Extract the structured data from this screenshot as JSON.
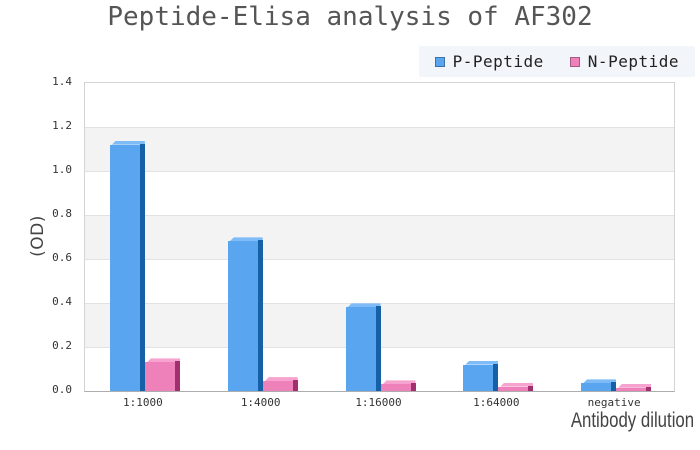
{
  "chart_data": {
    "type": "bar",
    "style": "pseudo-3d-grouped-bars",
    "title": "Peptide-Elisa analysis of AF302",
    "xlabel": "Antibody dilution",
    "ylabel": "(OD)",
    "categories": [
      "1:1000",
      "1:4000",
      "1:16000",
      "1:64000",
      "negative"
    ],
    "series": [
      {
        "name": "P-Peptide",
        "values": [
          1.12,
          0.68,
          0.38,
          0.12,
          0.035
        ],
        "color": "#5aa5f0",
        "color_top": "#7fbcf7",
        "color_side": "#1660a8"
      },
      {
        "name": "N-Peptide",
        "values": [
          0.13,
          0.045,
          0.03,
          0.02,
          0.015
        ],
        "color": "#ee80ba",
        "color_top": "#f6a3cf",
        "color_side": "#a2306f"
      }
    ],
    "ylim": [
      0,
      1.4
    ],
    "ytick_step": 0.2,
    "yticks": [
      "0.0",
      "0.2",
      "0.4",
      "0.6",
      "0.8",
      "1.0",
      "1.2",
      "1.4"
    ],
    "grid": true,
    "band_colors": [
      "#ffffff",
      "#f3f3f3"
    ],
    "gridline_color": "#e2e2e2",
    "legend_position": "top-right",
    "legend_background": "#f2f6fb",
    "title_color": "#555555",
    "tick_color": "#333333",
    "axis_title_color": "#444444"
  }
}
